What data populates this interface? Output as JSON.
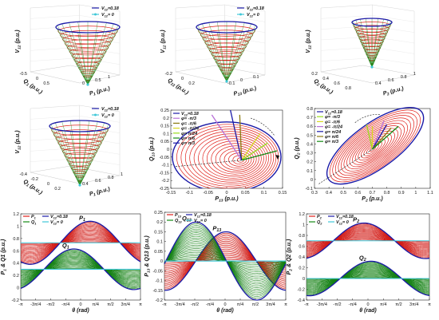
{
  "colors": {
    "red": "#e0201a",
    "green": "#148a14",
    "blue": "#1a1aa8",
    "cyan": "#40c8d8",
    "black": "#111111",
    "grid": "#dddddd",
    "olive": "#8a7a10",
    "lightgreen": "#9adc1c",
    "violet": "#b870d8",
    "yellow": "#d8d820"
  },
  "legend_cone": {
    "v18": "V12=0.18",
    "v0": "V12= 0"
  },
  "legend_wave": {
    "p": "P",
    "q": "Q",
    "v18": "V12=0.18",
    "v0": "V12= 0"
  },
  "legend_angles": [
    "φ= -π/3",
    "φ= -π/6",
    "φ= -π/24",
    "φ= π/24",
    "φ= π/6",
    "φ= π/3"
  ],
  "chart_data": [
    {
      "type": "surface",
      "panel": "a",
      "title": "",
      "zlabel": "V12 (p.u.)",
      "xlabel": "P1 (p.u.)",
      "ylabel": "Q1 (p.u.)",
      "x_ticks": [
        "0",
        "0.5",
        "1"
      ],
      "y_ticks": [
        "-0.5",
        "0",
        "0.5"
      ],
      "series": [
        {
          "name": "V12=0.18",
          "color": "blue"
        },
        {
          "name": "V12= 0",
          "color": "cyan"
        }
      ]
    },
    {
      "type": "surface",
      "panel": "b",
      "zlabel": "V12 (p.u.)",
      "xlabel": "P13 (p.u.)",
      "ylabel": "Q13 (p.u.)",
      "x_ticks": [
        "-0.1",
        "0",
        "0.1"
      ],
      "y_ticks": [
        "-0.2",
        "0",
        "0.2"
      ],
      "series": [
        {
          "name": "V12=0.18",
          "color": "blue"
        },
        {
          "name": "V12= 0",
          "color": "cyan"
        }
      ]
    },
    {
      "type": "surface",
      "panel": "c",
      "zlabel": "V12 (p.u.)",
      "xlabel": "P2 (p.u.)",
      "ylabel": "Q2 (p.u.)",
      "x_ticks": [
        "0.4",
        "0.6",
        "0.8",
        "1"
      ],
      "y_ticks": [
        "0.2",
        "0.4",
        "0.6",
        "0.8"
      ],
      "series": []
    },
    {
      "type": "surface",
      "panel": "d",
      "zlabel": "V12 (p.u.)",
      "xlabel": "P1 (p.u.)",
      "ylabel": "Q1 (p.u.)",
      "x_ticks": [
        "0.4",
        "0.6",
        "0.8",
        "1"
      ],
      "y_ticks": [
        "-0.4",
        "-0.2",
        "0",
        "0.2"
      ],
      "series": [
        {
          "name": "V12=0.18",
          "color": "blue"
        },
        {
          "name": "V12= 0",
          "color": "cyan"
        }
      ]
    },
    {
      "type": "ellipse",
      "panel": "e",
      "xlabel": "P13 (p.u.)",
      "ylabel": "Q13 (p.u.)",
      "xlim": [
        -0.15,
        0.15
      ],
      "ylim": [
        -0.25,
        0.25
      ],
      "x_ticks": [
        -0.15,
        -0.1,
        -0.05,
        0,
        0.05,
        0.1,
        0.15
      ],
      "y_ticks": [
        -0.25,
        -0.2,
        -0.15,
        -0.1,
        -0.05,
        0,
        0.05,
        0.1,
        0.15,
        0.2,
        0.25
      ],
      "center": [
        0,
        -0.05
      ],
      "radius": [
        0.15,
        0.2
      ],
      "rings": 16,
      "series": [
        {
          "name": "V12=0.18",
          "color": "blue"
        },
        {
          "name": "φ= -π/3",
          "color": "violet",
          "end": [
            -0.04,
            0.22
          ]
        },
        {
          "name": "φ= -π/6",
          "color": "olive",
          "end": [
            0.035,
            0.22
          ]
        },
        {
          "name": "φ= -π/24",
          "color": "yellow",
          "end": [
            0.09,
            0.1
          ]
        },
        {
          "name": "φ= π/24",
          "color": "lightgreen",
          "end": [
            0.11,
            0.04
          ]
        },
        {
          "name": "φ= π/6",
          "color": "green",
          "end": [
            0.135,
            -0.01
          ]
        },
        {
          "name": "φ= π/3",
          "color": "blue",
          "end": [
            0.01,
            0.25
          ]
        }
      ]
    },
    {
      "type": "ellipse",
      "panel": "f",
      "xlabel": "P2 (p.u.)",
      "ylabel": "Q2 (p.u.)",
      "xlim": [
        0.3,
        1.1
      ],
      "ylim": [
        -0.1,
        0.8
      ],
      "x_ticks": [
        0.3,
        0.4,
        0.5,
        0.6,
        0.7,
        0.8,
        0.9,
        1,
        1.1
      ],
      "y_ticks": [
        -0.1,
        0,
        0.1,
        0.2,
        0.3,
        0.4,
        0.5,
        0.6,
        0.7,
        0.8
      ],
      "center": [
        0.7,
        0.34
      ],
      "series": [
        {
          "name": "V12=0.18",
          "color": "blue"
        },
        {
          "name": "φ= -π/3",
          "color": "lightgreen",
          "end": [
            0.66,
            0.62
          ]
        },
        {
          "name": "φ= -π/6",
          "color": "yellow",
          "end": [
            0.7,
            0.6
          ]
        },
        {
          "name": "φ= -π/24",
          "color": "violet",
          "end": [
            0.78,
            0.66
          ]
        },
        {
          "name": "φ= π/24",
          "color": "blue",
          "end": [
            0.8,
            0.62
          ]
        },
        {
          "name": "φ= π/6",
          "color": "olive",
          "end": [
            0.83,
            0.58
          ]
        },
        {
          "name": "φ= π/3",
          "color": "green",
          "end": [
            0.88,
            0.6
          ]
        }
      ]
    },
    {
      "type": "area",
      "panel": "g",
      "xlabel": "θ (rad)",
      "ylabel": "P1 & Q1 (p.u.)",
      "ylim": [
        -0.2,
        1.2
      ],
      "y_ticks": [
        -0.2,
        0,
        0.2,
        0.4,
        0.6,
        0.8,
        1,
        1.2
      ],
      "x_tick_labels": [
        "-π",
        "-3π/4",
        "-π/2",
        "-π/4",
        "0",
        "π/4",
        "π/2",
        "3π/4",
        "π"
      ],
      "series": [
        {
          "name": "P1",
          "label": "P1",
          "baseline": 0.73,
          "amplitude": 0.35,
          "phase": 0.5
        },
        {
          "name": "Q1",
          "label": "Q1",
          "baseline": 0.3,
          "amplitude": 0.33,
          "phase": -0.35
        }
      ]
    },
    {
      "type": "area",
      "panel": "h",
      "xlabel": "θ (rad)",
      "ylabel": "P13 & Q13 (p.u.)",
      "ylim": [
        -0.2,
        0.25
      ],
      "y_ticks": [
        -0.2,
        -0.15,
        -0.1,
        -0.05,
        0,
        0.05,
        0.1,
        0.15,
        0.2,
        0.25
      ],
      "x_tick_labels": [
        "-π",
        "-3π/4",
        "-π/2",
        "-π/4",
        "0",
        "π/4",
        "π/2",
        "3π/4",
        "π"
      ],
      "series": [
        {
          "name": "P13",
          "label": "P13",
          "baseline": 0,
          "amplitude": 0.15,
          "phase": 0.05
        },
        {
          "name": "Q13",
          "label": "Q13",
          "baseline": 0,
          "amplitude": 0.2,
          "phase": -1.5
        }
      ]
    },
    {
      "type": "area",
      "panel": "i",
      "xlabel": "θ (rad)",
      "ylabel": "P2 & Q2 (p.u.)",
      "ylim": [
        -0.4,
        1.2
      ],
      "y_ticks": [
        -0.4,
        -0.2,
        0,
        0.2,
        0.4,
        0.6,
        0.8,
        1,
        1.2
      ],
      "x_tick_labels": [
        "-π",
        "-3π/4",
        "-π/2",
        "-π/4",
        "0",
        "π/4",
        "π/2",
        "3π/4",
        "π"
      ],
      "series": [
        {
          "name": "P2",
          "label": "P2",
          "baseline": 0.7,
          "amplitude": 0.33,
          "phase": -0.2
        },
        {
          "name": "Q2",
          "label": "Q2",
          "baseline": 0,
          "amplitude": 0.32,
          "phase": 0.15
        }
      ]
    }
  ]
}
